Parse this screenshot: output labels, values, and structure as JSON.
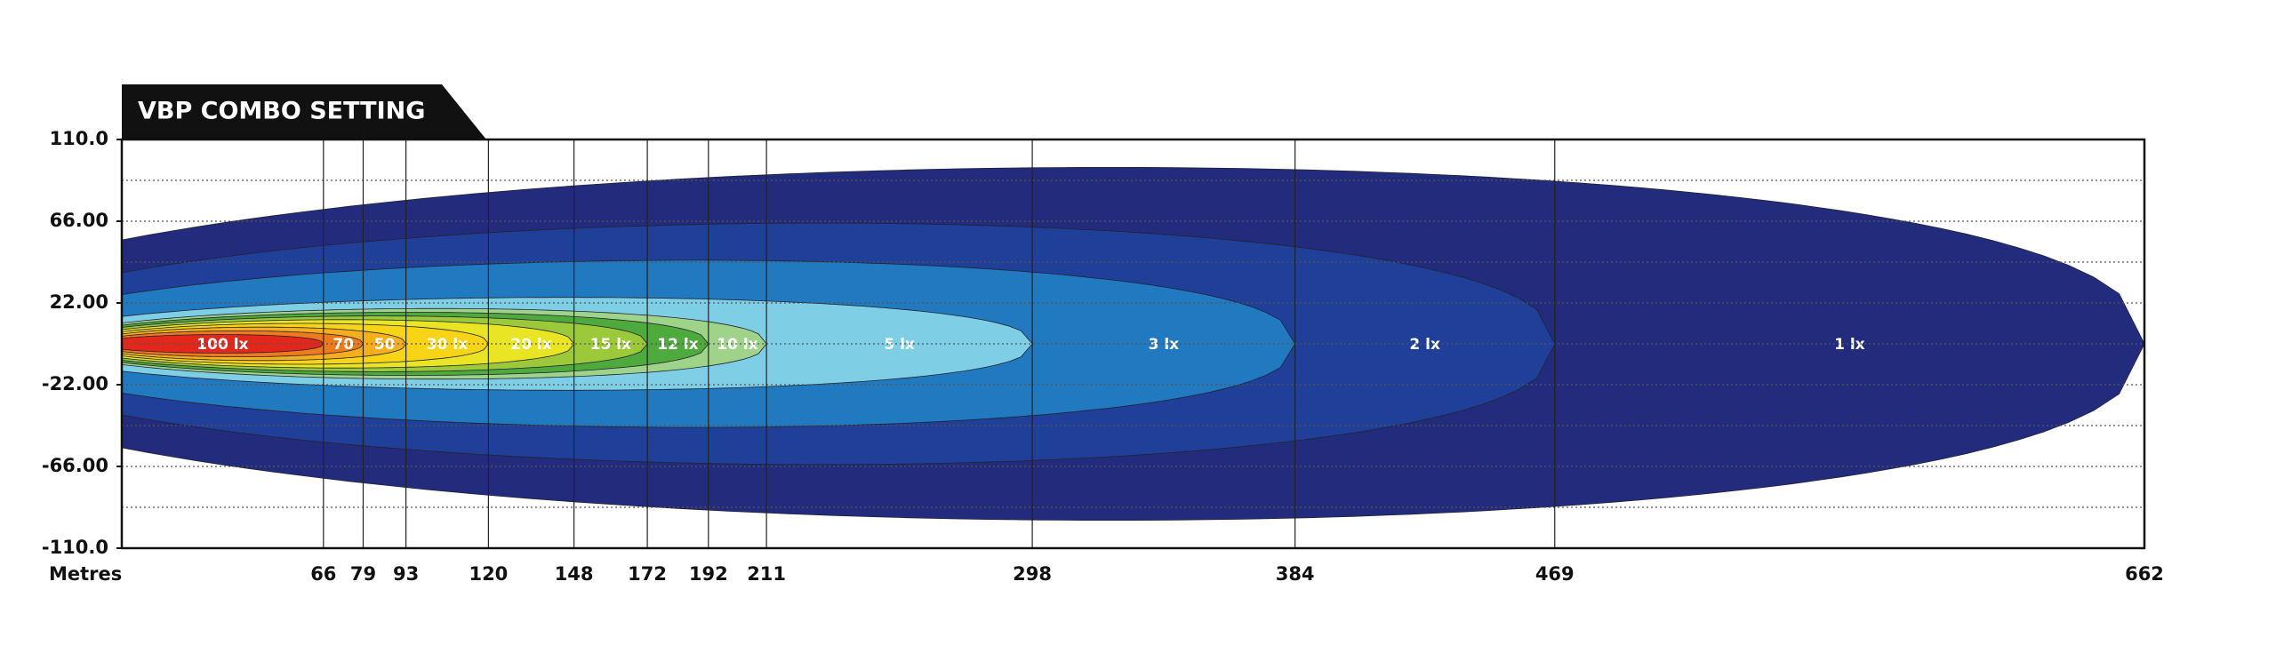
{
  "chart_data": {
    "type": "contour",
    "title": "VBP COMBO SETTING",
    "xlabel": "Metres",
    "xlim": [
      0,
      662
    ],
    "ylim": [
      -110,
      110
    ],
    "xticks": [
      66,
      79,
      93,
      120,
      148,
      172,
      192,
      211,
      298,
      384,
      469,
      662
    ],
    "yticks": [
      {
        "value": 110,
        "label": "110.0"
      },
      {
        "value": 66,
        "label": "66.00"
      },
      {
        "value": 22,
        "label": "22.00"
      },
      {
        "value": -22,
        "label": "-22.00"
      },
      {
        "value": -66,
        "label": "-66.00"
      },
      {
        "value": -110,
        "label": "-110.0"
      }
    ],
    "ygrid": [
      88,
      66,
      44,
      22,
      0,
      -22,
      -44,
      -66,
      -88
    ],
    "contours": [
      {
        "name": "1 lx",
        "reach": 662,
        "half_width": 95,
        "color": "#232c7c"
      },
      {
        "name": "2 lx",
        "reach": 469,
        "half_width": 65,
        "color": "#1f3f98"
      },
      {
        "name": "3 lx",
        "reach": 384,
        "half_width": 45,
        "color": "#2179c0"
      },
      {
        "name": "5 lx",
        "reach": 298,
        "half_width": 25,
        "color": "#7ecfe6"
      },
      {
        "name": "10 lx",
        "reach": 211,
        "half_width": 19,
        "color": "#9fd38a"
      },
      {
        "name": "12 lx",
        "reach": 192,
        "half_width": 17,
        "color": "#4eaa3c"
      },
      {
        "name": "15 lx",
        "reach": 172,
        "half_width": 15,
        "color": "#9bc93a"
      },
      {
        "name": "20 lx",
        "reach": 148,
        "half_width": 13,
        "color": "#e9e524"
      },
      {
        "name": "30 lx",
        "reach": 120,
        "half_width": 11,
        "color": "#f7d415"
      },
      {
        "name": "50",
        "reach": 93,
        "half_width": 9,
        "color": "#f5ae1c"
      },
      {
        "name": "70",
        "reach": 79,
        "half_width": 7,
        "color": "#ee7a1e"
      },
      {
        "name": "100 lx",
        "reach": 66,
        "half_width": 5,
        "color": "#e3271c"
      }
    ]
  }
}
